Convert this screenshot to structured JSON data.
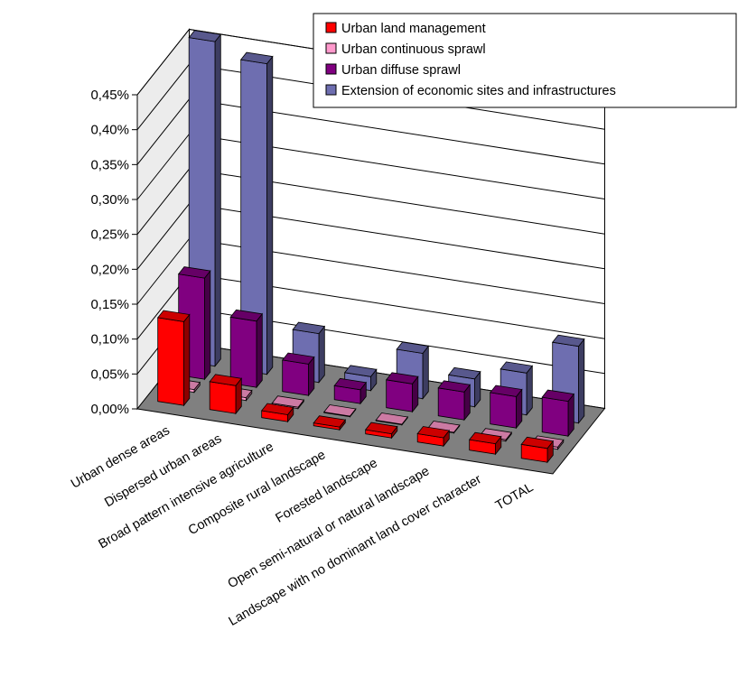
{
  "chart_data": {
    "type": "bar",
    "variant": "3d-column",
    "title": "",
    "xlabel": "",
    "ylabel": "",
    "ylim": [
      0,
      0.45
    ],
    "y_ticks": [
      0,
      0.05,
      0.1,
      0.15,
      0.2,
      0.25,
      0.3,
      0.35,
      0.4,
      0.45
    ],
    "y_tick_labels": [
      "0,00%",
      "0,05%",
      "0,10%",
      "0,15%",
      "0,20%",
      "0,25%",
      "0,30%",
      "0,35%",
      "0,40%",
      "0,45%"
    ],
    "grid": true,
    "legend_position": "top-right",
    "categories": [
      "Urban dense areas",
      "Dispersed urban areas",
      "Broad pattern intensive agriculture",
      "Composite rural landscape",
      "Forested landscape",
      "Open semi-natural or natural landscape",
      "Landscape with no dominant land cover character",
      "TOTAL"
    ],
    "series": [
      {
        "name": "Urban land management",
        "color": "#ff0000",
        "values": [
          0.12,
          0.04,
          0.01,
          0.004,
          0.006,
          0.012,
          0.015,
          0.02
        ]
      },
      {
        "name": "Urban continuous sprawl",
        "color": "#ff99cc",
        "values": [
          0.004,
          0.004,
          0.002,
          0.001,
          0.001,
          0.001,
          0.002,
          0.003
        ]
      },
      {
        "name": "Urban diffuse sprawl",
        "color": "#800080",
        "values": [
          0.145,
          0.095,
          0.045,
          0.02,
          0.04,
          0.04,
          0.045,
          0.05
        ]
      },
      {
        "name": "Extension of economic sites and infrastructures",
        "color": "#6e6eb0",
        "values": [
          0.465,
          0.445,
          0.07,
          0.02,
          0.065,
          0.04,
          0.06,
          0.11
        ]
      }
    ]
  }
}
